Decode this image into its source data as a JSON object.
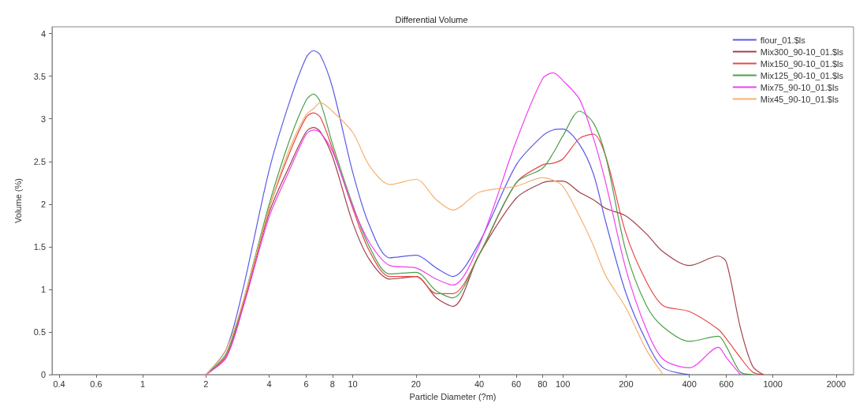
{
  "chart_data": {
    "type": "line",
    "title": "Differential Volume",
    "xlabel": "Particle Diameter (?m)",
    "ylabel": "Volume (%)",
    "log": "x",
    "grid": false,
    "legend": "top right",
    "marker": "none",
    "line_style": "solid",
    "xlim": [
      0.37,
      2420
    ],
    "xticks": [
      0.4,
      0.6,
      1,
      2,
      4,
      6,
      8,
      10,
      20,
      40,
      60,
      80,
      100,
      200,
      400,
      600,
      1000,
      2000
    ],
    "ylim": [
      0,
      4.08
    ],
    "yticks": [
      0,
      0.5,
      1,
      1.5,
      2,
      2.5,
      3,
      3.5,
      4
    ],
    "x": [
      2,
      2.5,
      3,
      4,
      5,
      6,
      6.5,
      7,
      8,
      10,
      12,
      15,
      20,
      25,
      30,
      40,
      60,
      80,
      90,
      100,
      120,
      140,
      160,
      200,
      250,
      300,
      400,
      550,
      600,
      700,
      800,
      900
    ],
    "series": [
      {
        "name": "flour_01.$ls",
        "color": "#5a5ae8",
        "values": [
          0,
          0.3,
          1.0,
          2.4,
          3.2,
          3.72,
          3.8,
          3.75,
          3.37,
          2.37,
          1.75,
          1.37,
          1.4,
          1.25,
          1.15,
          1.55,
          2.46,
          2.8,
          2.87,
          2.88,
          2.7,
          2.35,
          1.79,
          0.95,
          0.39,
          0.08,
          0,
          null,
          null,
          null,
          null,
          null
        ]
      },
      {
        "name": "Mix300_90-10_01.$ls",
        "color": "#a0404a",
        "values": [
          0,
          0.22,
          0.8,
          1.9,
          2.45,
          2.85,
          2.9,
          2.85,
          2.56,
          1.78,
          1.35,
          1.12,
          1.15,
          0.9,
          0.8,
          1.41,
          2.07,
          2.25,
          2.27,
          2.27,
          2.14,
          2.05,
          1.95,
          1.86,
          1.65,
          1.44,
          1.28,
          1.39,
          1.32,
          0.55,
          0.1,
          0
        ]
      },
      {
        "name": "Mix150_90-10_01.$ls",
        "color": "#e84848",
        "values": [
          0,
          0.22,
          0.82,
          1.95,
          2.6,
          3.02,
          3.07,
          3.02,
          2.65,
          1.95,
          1.45,
          1.15,
          1.15,
          0.95,
          0.95,
          1.41,
          2.25,
          2.46,
          2.48,
          2.53,
          2.77,
          2.82,
          2.56,
          1.65,
          1.09,
          0.81,
          0.74,
          0.53,
          0.42,
          0.2,
          0.03,
          0
        ]
      },
      {
        "name": "Mix125_90-10_01.$ls",
        "color": "#4aa04a",
        "values": [
          0,
          0.25,
          0.85,
          2.0,
          2.75,
          3.22,
          3.29,
          3.2,
          2.71,
          1.99,
          1.5,
          1.18,
          1.2,
          0.98,
          0.9,
          1.41,
          2.25,
          2.42,
          2.6,
          2.8,
          3.09,
          2.95,
          2.56,
          1.44,
          0.81,
          0.56,
          0.39,
          0.45,
          0.33,
          0.03,
          0,
          null
        ]
      },
      {
        "name": "Mix75_90-10_01.$ls",
        "color": "#f040f0",
        "values": [
          0,
          0.2,
          0.78,
          1.85,
          2.4,
          2.82,
          2.87,
          2.84,
          2.62,
          1.97,
          1.55,
          1.28,
          1.25,
          1.12,
          1.05,
          1.52,
          2.74,
          3.47,
          3.54,
          3.45,
          3.23,
          2.77,
          2.25,
          1.23,
          0.53,
          0.18,
          0.08,
          0.32,
          0.2,
          0,
          null,
          null
        ]
      },
      {
        "name": "Mix45_90-10_01.$ls",
        "color": "#f8b070",
        "values": [
          0,
          0.3,
          0.85,
          1.95,
          2.65,
          3.05,
          3.12,
          3.19,
          3.09,
          2.84,
          2.45,
          2.23,
          2.29,
          2.05,
          1.93,
          2.14,
          2.21,
          2.31,
          2.28,
          2.21,
          1.86,
          1.51,
          1.16,
          0.78,
          0.29,
          0,
          null,
          null,
          null,
          null,
          null,
          null
        ]
      }
    ]
  }
}
